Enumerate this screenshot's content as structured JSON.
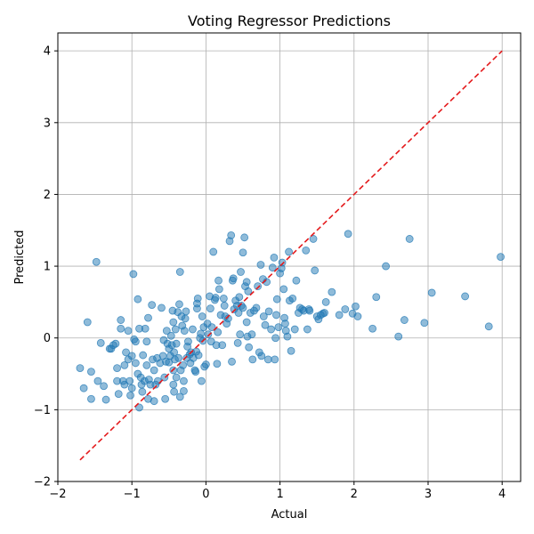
{
  "chart_data": {
    "type": "scatter",
    "title": "Voting Regressor Predictions",
    "xlabel": "Actual",
    "ylabel": "Predicted",
    "xlim": [
      -2.0,
      4.25
    ],
    "ylim": [
      -2.0,
      4.25
    ],
    "xticks": [
      -2,
      -1,
      0,
      1,
      2,
      3,
      4
    ],
    "yticks": [
      -2,
      -1,
      0,
      1,
      2,
      3,
      4
    ],
    "xtick_labels": [
      "−2",
      "−1",
      "0",
      "1",
      "2",
      "3",
      "4"
    ],
    "ytick_labels": [
      "−2",
      "−1",
      "0",
      "1",
      "2",
      "3",
      "4"
    ],
    "grid": true,
    "colors": {
      "points": "#1f77b4",
      "reference_line": "#e41a1c",
      "axis": "#000000",
      "grid": "#b0b0b0"
    },
    "reference_line": {
      "style": "dashed",
      "from": [
        -1.7,
        -1.7
      ],
      "to": [
        4.0,
        4.0
      ]
    },
    "series": [
      {
        "points": [
          [
            -1.7,
            -0.42
          ],
          [
            -1.65,
            -0.7
          ],
          [
            -1.6,
            0.22
          ],
          [
            -1.55,
            -0.85
          ],
          [
            -1.55,
            -0.47
          ],
          [
            -1.48,
            1.06
          ],
          [
            -1.46,
            -0.6
          ],
          [
            -1.42,
            -0.07
          ],
          [
            -1.38,
            -0.67
          ],
          [
            -1.35,
            -0.86
          ],
          [
            -1.3,
            -0.15
          ],
          [
            -1.28,
            -0.15
          ],
          [
            -1.25,
            -0.1
          ],
          [
            -1.22,
            -0.08
          ],
          [
            -1.2,
            -0.42
          ],
          [
            -1.18,
            -0.78
          ],
          [
            -1.2,
            -0.6
          ],
          [
            -1.15,
            0.25
          ],
          [
            -1.15,
            0.13
          ],
          [
            -1.12,
            -0.6
          ],
          [
            -1.1,
            -0.65
          ],
          [
            -1.1,
            -0.38
          ],
          [
            -1.08,
            -0.2
          ],
          [
            -1.05,
            -0.3
          ],
          [
            -1.05,
            0.1
          ],
          [
            -1.03,
            -0.6
          ],
          [
            -1.02,
            -0.8
          ],
          [
            -1.0,
            -0.25
          ],
          [
            -1.0,
            -0.7
          ],
          [
            -0.98,
            0.89
          ],
          [
            -0.97,
            -0.02
          ],
          [
            -0.95,
            -0.05
          ],
          [
            -0.95,
            -0.35
          ],
          [
            -0.92,
            -0.5
          ],
          [
            -0.92,
            0.54
          ],
          [
            -0.9,
            0.13
          ],
          [
            -0.9,
            -0.97
          ],
          [
            -0.88,
            -0.55
          ],
          [
            -0.87,
            -0.65
          ],
          [
            -0.86,
            -0.75
          ],
          [
            -0.85,
            -0.24
          ],
          [
            -0.83,
            -0.6
          ],
          [
            -0.82,
            0.13
          ],
          [
            -0.8,
            -0.05
          ],
          [
            -0.8,
            -0.38
          ],
          [
            -0.78,
            0.28
          ],
          [
            -0.78,
            -0.85
          ],
          [
            -0.77,
            -0.58
          ],
          [
            -0.75,
            -0.65
          ],
          [
            -0.73,
            0.46
          ],
          [
            -0.72,
            -0.3
          ],
          [
            -0.7,
            -0.88
          ],
          [
            -0.7,
            -0.45
          ],
          [
            -0.68,
            -0.65
          ],
          [
            -0.66,
            -0.28
          ],
          [
            -0.65,
            -0.6
          ],
          [
            -0.62,
            -0.35
          ],
          [
            -0.6,
            0.42
          ],
          [
            -0.58,
            -0.25
          ],
          [
            -0.57,
            -0.03
          ],
          [
            -0.56,
            -0.55
          ],
          [
            -0.55,
            -0.85
          ],
          [
            -0.54,
            -0.33
          ],
          [
            -0.53,
            0.1
          ],
          [
            -0.52,
            -0.08
          ],
          [
            -0.5,
            -0.15
          ],
          [
            -0.5,
            -0.34
          ],
          [
            -0.48,
            -0.25
          ],
          [
            -0.47,
            0.03
          ],
          [
            -0.46,
            -0.1
          ],
          [
            -0.45,
            0.38
          ],
          [
            -0.44,
            0.22
          ],
          [
            -0.44,
            -0.45
          ],
          [
            -0.44,
            -0.65
          ],
          [
            -0.43,
            -0.2
          ],
          [
            -0.43,
            -0.75
          ],
          [
            -0.42,
            -0.3
          ],
          [
            -0.41,
            0.12
          ],
          [
            -0.4,
            -0.55
          ],
          [
            -0.4,
            -0.08
          ],
          [
            -0.38,
            0.36
          ],
          [
            -0.37,
            -0.28
          ],
          [
            -0.36,
            0.47
          ],
          [
            -0.35,
            -0.82
          ],
          [
            -0.35,
            0.92
          ],
          [
            -0.34,
            -0.45
          ],
          [
            -0.33,
            0.3
          ],
          [
            -0.32,
            0.17
          ],
          [
            -0.31,
            -0.38
          ],
          [
            -0.3,
            -0.74
          ],
          [
            -0.3,
            -0.6
          ],
          [
            -0.29,
            0.1
          ],
          [
            -0.28,
            0.27
          ],
          [
            -0.27,
            0.37
          ],
          [
            -0.26,
            -0.28
          ],
          [
            -0.25,
            -0.12
          ],
          [
            -0.24,
            -0.05
          ],
          [
            -0.22,
            -0.23
          ],
          [
            -0.21,
            -0.35
          ],
          [
            -0.2,
            -0.2
          ],
          [
            -0.18,
            0.12
          ],
          [
            -0.17,
            -0.28
          ],
          [
            -0.15,
            -0.45
          ],
          [
            -0.14,
            -0.47
          ],
          [
            -0.13,
            -0.19
          ],
          [
            -0.12,
            0.41
          ],
          [
            -0.12,
            0.48
          ],
          [
            -0.11,
            0.55
          ],
          [
            -0.1,
            -0.24
          ],
          [
            -0.08,
            0.0
          ],
          [
            -0.07,
            0.06
          ],
          [
            -0.06,
            -0.6
          ],
          [
            -0.05,
            0.3
          ],
          [
            -0.04,
            -0.04
          ],
          [
            -0.03,
            0.15
          ],
          [
            -0.02,
            -0.4
          ],
          [
            0.0,
            -0.37
          ],
          [
            0.02,
            0.2
          ],
          [
            0.03,
            0.05
          ],
          [
            0.05,
            0.58
          ],
          [
            0.06,
            0.41
          ],
          [
            0.07,
            -0.05
          ],
          [
            0.08,
            0.15
          ],
          [
            0.1,
            1.2
          ],
          [
            0.12,
            0.53
          ],
          [
            0.13,
            0.56
          ],
          [
            0.14,
            -0.1
          ],
          [
            0.15,
            -0.36
          ],
          [
            0.16,
            0.08
          ],
          [
            0.17,
            0.8
          ],
          [
            0.18,
            0.68
          ],
          [
            0.2,
            0.32
          ],
          [
            0.22,
            -0.1
          ],
          [
            0.24,
            0.55
          ],
          [
            0.25,
            0.45
          ],
          [
            0.26,
            0.3
          ],
          [
            0.28,
            0.2
          ],
          [
            0.3,
            0.27
          ],
          [
            0.32,
            1.35
          ],
          [
            0.34,
            1.43
          ],
          [
            0.35,
            -0.33
          ],
          [
            0.36,
            0.8
          ],
          [
            0.37,
            0.83
          ],
          [
            0.38,
            0.4
          ],
          [
            0.4,
            0.52
          ],
          [
            0.42,
            0.45
          ],
          [
            0.43,
            -0.07
          ],
          [
            0.44,
            0.35
          ],
          [
            0.45,
            0.57
          ],
          [
            0.46,
            0.05
          ],
          [
            0.47,
            0.92
          ],
          [
            0.48,
            0.45
          ],
          [
            0.5,
            0.42
          ],
          [
            0.5,
            1.19
          ],
          [
            0.52,
            1.4
          ],
          [
            0.53,
            0.72
          ],
          [
            0.55,
            0.22
          ],
          [
            0.55,
            0.78
          ],
          [
            0.56,
            0.02
          ],
          [
            0.57,
            0.65
          ],
          [
            0.58,
            -0.13
          ],
          [
            0.6,
            0.35
          ],
          [
            0.62,
            0.05
          ],
          [
            0.63,
            -0.3
          ],
          [
            0.65,
            0.38
          ],
          [
            0.68,
            0.42
          ],
          [
            0.7,
            0.72
          ],
          [
            0.72,
            -0.2
          ],
          [
            0.74,
            1.02
          ],
          [
            0.75,
            -0.25
          ],
          [
            0.77,
            0.82
          ],
          [
            0.78,
            0.3
          ],
          [
            0.8,
            0.18
          ],
          [
            0.82,
            0.78
          ],
          [
            0.84,
            -0.3
          ],
          [
            0.85,
            0.37
          ],
          [
            0.88,
            0.12
          ],
          [
            0.9,
            0.98
          ],
          [
            0.92,
            1.12
          ],
          [
            0.93,
            -0.3
          ],
          [
            0.94,
            0.0
          ],
          [
            0.95,
            0.32
          ],
          [
            0.96,
            0.54
          ],
          [
            0.98,
            0.15
          ],
          [
            1.0,
            0.9
          ],
          [
            1.02,
            0.97
          ],
          [
            1.03,
            1.05
          ],
          [
            1.05,
            0.68
          ],
          [
            1.06,
            0.28
          ],
          [
            1.07,
            0.2
          ],
          [
            1.08,
            0.1
          ],
          [
            1.1,
            0.02
          ],
          [
            1.12,
            1.2
          ],
          [
            1.13,
            0.52
          ],
          [
            1.15,
            -0.18
          ],
          [
            1.17,
            0.55
          ],
          [
            1.2,
            0.12
          ],
          [
            1.22,
            0.8
          ],
          [
            1.25,
            0.35
          ],
          [
            1.27,
            0.42
          ],
          [
            1.3,
            0.4
          ],
          [
            1.32,
            0.38
          ],
          [
            1.35,
            1.22
          ],
          [
            1.37,
            0.12
          ],
          [
            1.39,
            0.4
          ],
          [
            1.4,
            0.38
          ],
          [
            1.45,
            1.38
          ],
          [
            1.47,
            0.94
          ],
          [
            1.5,
            0.3
          ],
          [
            1.52,
            0.26
          ],
          [
            1.55,
            0.32
          ],
          [
            1.58,
            0.34
          ],
          [
            1.6,
            0.35
          ],
          [
            1.62,
            0.5
          ],
          [
            1.7,
            0.64
          ],
          [
            1.8,
            0.32
          ],
          [
            1.88,
            0.4
          ],
          [
            1.92,
            1.45
          ],
          [
            1.98,
            0.34
          ],
          [
            2.02,
            0.44
          ],
          [
            2.05,
            0.3
          ],
          [
            2.25,
            0.13
          ],
          [
            2.3,
            0.57
          ],
          [
            2.43,
            1.0
          ],
          [
            2.6,
            0.02
          ],
          [
            2.68,
            0.25
          ],
          [
            2.75,
            1.38
          ],
          [
            2.95,
            0.21
          ],
          [
            3.05,
            0.63
          ],
          [
            3.5,
            0.58
          ],
          [
            3.82,
            0.16
          ],
          [
            3.98,
            1.13
          ]
        ]
      }
    ]
  }
}
